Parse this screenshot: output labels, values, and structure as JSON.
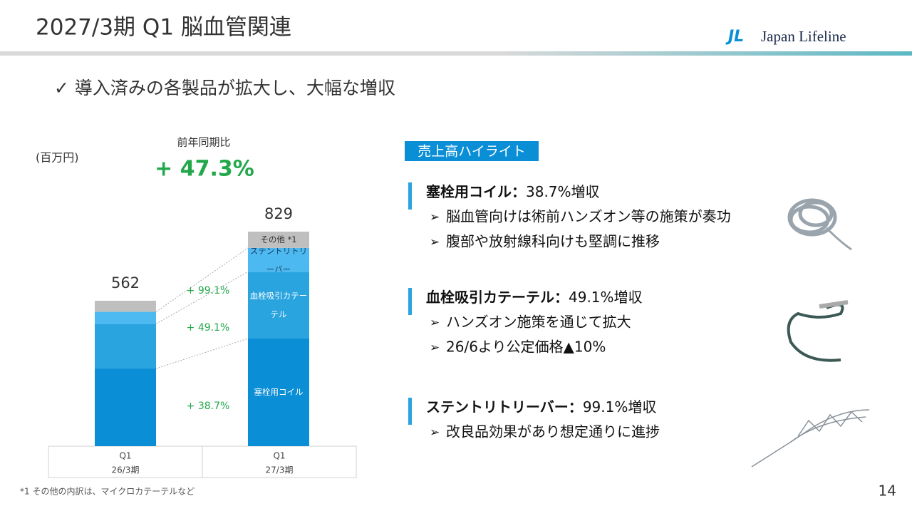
{
  "header": {
    "title": "2027/3期 Q1 脳血管関連",
    "logo_mark": "JL",
    "logo": "Japan Lifeline"
  },
  "headline": "✓ 導入済みの各製品が拡大し、大幅な増収",
  "chart_data": {
    "type": "stacked_bar",
    "unit_label": "(百万円)",
    "yoy_label": "前年同期比",
    "yoy_value": "+ 47.3%",
    "categories": [
      "Q1",
      "Q1"
    ],
    "category_sublabels": [
      "26/3期",
      "27/3期"
    ],
    "totals": [
      562,
      829
    ],
    "series": [
      {
        "name": "塞栓用コイル",
        "color": "#0a8ed6",
        "values": [
          300,
          416
        ]
      },
      {
        "name": "血栓吸引カテーテル",
        "color": "#2aa4df",
        "values": [
          173,
          258
        ]
      },
      {
        "name": "ステントリトリーバー",
        "color": "#4cbaf0",
        "values": [
          46,
          92
        ]
      },
      {
        "name": "その他 *1",
        "color": "#bfbfbf",
        "values": [
          43,
          63
        ]
      }
    ],
    "growth_labels": [
      "+ 38.7%",
      "+ 49.1%",
      "+ 99.1%"
    ],
    "footnote": "*1 その他の内訳は、マイクロカテーテルなど"
  },
  "highlights": {
    "title": "売上高ハイライト",
    "items": [
      {
        "heading": "塞栓用コイル：",
        "detail": "38.7%増収",
        "bullets": [
          "脳血管向けは術前ハンズオン等の施策が奏功",
          "腹部や放射線科向けも堅調に推移"
        ]
      },
      {
        "heading": "血栓吸引カテーテル：",
        "detail": "49.1%増収",
        "bullets": [
          "ハンズオン施策を通じて拡大",
          "26/6より公定価格▲10%"
        ]
      },
      {
        "heading": "ステントリトリーバー：",
        "detail": "99.1%増収",
        "bullets": [
          "改良品効果があり想定通りに進捗"
        ]
      }
    ]
  },
  "page_number": "14"
}
